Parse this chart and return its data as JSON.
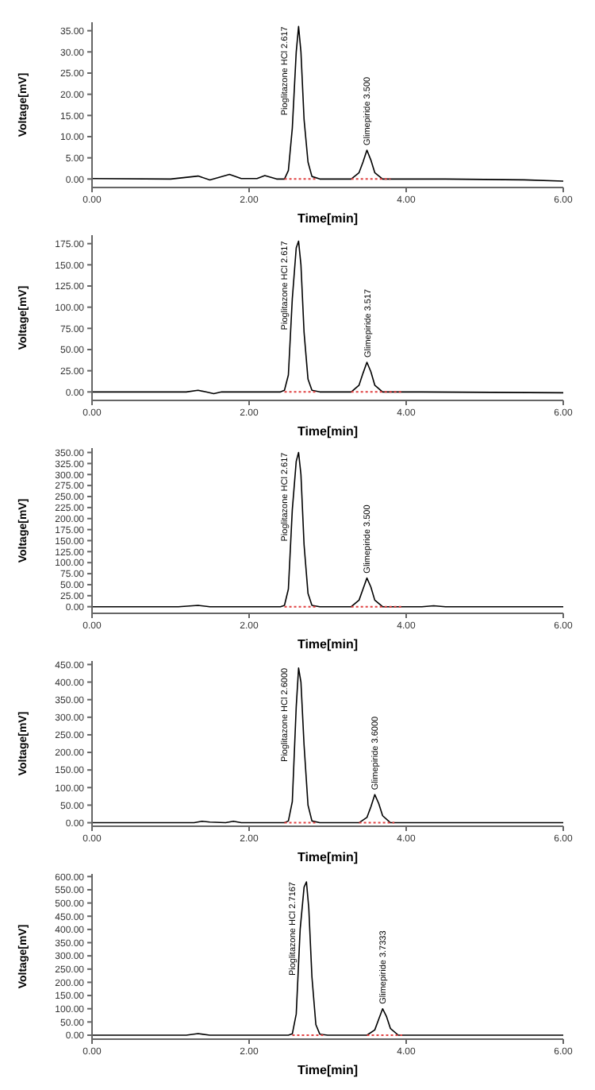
{
  "chart_data": [
    {
      "type": "line",
      "xlabel": "Time[min]",
      "ylabel": "Voltage[mV]",
      "xlim": [
        0,
        6
      ],
      "xticks": [
        {
          "value": 0,
          "label": "0.00"
        },
        {
          "value": 2,
          "label": "2.00"
        },
        {
          "value": 4,
          "label": "4.00"
        },
        {
          "value": 6,
          "label": "6.00"
        }
      ],
      "ylim": [
        -2,
        37
      ],
      "yticks": [
        {
          "value": 0,
          "label": "0.00"
        },
        {
          "value": 5,
          "label": "5.00"
        },
        {
          "value": 10,
          "label": "10.00"
        },
        {
          "value": 15,
          "label": "15.00"
        },
        {
          "value": 20,
          "label": "20.00"
        },
        {
          "value": 25,
          "label": "25.00"
        },
        {
          "value": 30,
          "label": "30.00"
        },
        {
          "value": 35,
          "label": "35.00"
        }
      ],
      "grid": false,
      "legend": false,
      "marker": "none",
      "series": [
        {
          "color": "#000000",
          "line_style": "solid",
          "x": [
            0,
            1,
            1.35,
            1.5,
            1.6,
            1.75,
            1.9,
            2.1,
            2.2,
            2.35,
            2.45,
            2.5,
            2.55,
            2.6,
            2.63,
            2.66,
            2.7,
            2.75,
            2.8,
            2.9,
            3.3,
            3.4,
            3.45,
            3.5,
            3.55,
            3.6,
            3.7,
            4.5,
            5.5,
            6
          ],
          "values": [
            0.1,
            0,
            0.7,
            -0.2,
            0.3,
            1.1,
            0.1,
            0.1,
            0.8,
            0,
            0,
            2,
            12,
            30,
            36,
            30,
            14,
            4,
            0.6,
            0,
            0,
            1.5,
            4,
            6.8,
            4.5,
            1.5,
            0,
            0,
            -0.2,
            -0.5
          ]
        },
        {
          "color": "#e04040",
          "line_style": "dotted",
          "x": [
            2.45,
            2.85
          ],
          "values": [
            0,
            0
          ]
        },
        {
          "color": "#e04040",
          "line_style": "dotted",
          "x": [
            3.3,
            3.8
          ],
          "values": [
            0,
            0
          ]
        }
      ],
      "annotations": [
        {
          "text": "Pioglitazone HCl 2.617",
          "x": 2.63,
          "y": 36
        },
        {
          "text": "Glimepiride 3.500",
          "x": 3.5,
          "y": 6.8
        }
      ]
    },
    {
      "type": "line",
      "xlabel": "Time[min]",
      "ylabel": "Voltage[mV]",
      "xlim": [
        0,
        6
      ],
      "xticks": [
        {
          "value": 0,
          "label": "0.00"
        },
        {
          "value": 2,
          "label": "2.00"
        },
        {
          "value": 4,
          "label": "4.00"
        },
        {
          "value": 6,
          "label": "6.00"
        }
      ],
      "ylim": [
        -10,
        185
      ],
      "yticks": [
        {
          "value": 0,
          "label": "0.00"
        },
        {
          "value": 25,
          "label": "25.00"
        },
        {
          "value": 50,
          "label": "50.00"
        },
        {
          "value": 75,
          "label": "75.00"
        },
        {
          "value": 100,
          "label": "100.00"
        },
        {
          "value": 125,
          "label": "125.00"
        },
        {
          "value": 150,
          "label": "150.00"
        },
        {
          "value": 175,
          "label": "175.00"
        }
      ],
      "grid": false,
      "legend": false,
      "marker": "none",
      "series": [
        {
          "color": "#000000",
          "line_style": "solid",
          "x": [
            0,
            1.2,
            1.35,
            1.45,
            1.55,
            1.65,
            2.4,
            2.45,
            2.5,
            2.55,
            2.6,
            2.63,
            2.66,
            2.7,
            2.75,
            2.8,
            2.9,
            3.3,
            3.4,
            3.45,
            3.5,
            3.55,
            3.6,
            3.7,
            4.1,
            4.2,
            6
          ],
          "values": [
            0,
            0,
            2,
            0,
            -2,
            0,
            0,
            2,
            20,
            110,
            170,
            178,
            150,
            70,
            15,
            2,
            0,
            0,
            8,
            22,
            35,
            24,
            8,
            0,
            0,
            0,
            -1
          ]
        },
        {
          "color": "#e04040",
          "line_style": "dotted",
          "x": [
            2.45,
            2.85
          ],
          "values": [
            0,
            0
          ]
        },
        {
          "color": "#e04040",
          "line_style": "dotted",
          "x": [
            3.3,
            3.95
          ],
          "values": [
            0,
            0
          ]
        }
      ],
      "annotations": [
        {
          "text": "Pioglitazone HCl 2.617",
          "x": 2.63,
          "y": 178
        },
        {
          "text": "Glimepiride 3.517",
          "x": 3.5,
          "y": 35
        }
      ]
    },
    {
      "type": "line",
      "xlabel": "Time[min]",
      "ylabel": "Voltage[mV]",
      "xlim": [
        0,
        6
      ],
      "xticks": [
        {
          "value": 0,
          "label": "0.00"
        },
        {
          "value": 2,
          "label": "2.00"
        },
        {
          "value": 4,
          "label": "4.00"
        },
        {
          "value": 6,
          "label": "6.00"
        }
      ],
      "ylim": [
        -15,
        360
      ],
      "yticks": [
        {
          "value": 0,
          "label": "0.00"
        },
        {
          "value": 25,
          "label": "25.00"
        },
        {
          "value": 50,
          "label": "50.00"
        },
        {
          "value": 75,
          "label": "75.00"
        },
        {
          "value": 100,
          "label": "100.00"
        },
        {
          "value": 125,
          "label": "125.00"
        },
        {
          "value": 150,
          "label": "150.00"
        },
        {
          "value": 175,
          "label": "175.00"
        },
        {
          "value": 200,
          "label": "200.00"
        },
        {
          "value": 225,
          "label": "225.00"
        },
        {
          "value": 250,
          "label": "250.00"
        },
        {
          "value": 275,
          "label": "275.00"
        },
        {
          "value": 300,
          "label": "300.00"
        },
        {
          "value": 325,
          "label": "325.00"
        },
        {
          "value": 350,
          "label": "350.00"
        }
      ],
      "grid": false,
      "legend": false,
      "marker": "none",
      "series": [
        {
          "color": "#000000",
          "line_style": "solid",
          "x": [
            0,
            1.1,
            1.35,
            1.5,
            2.4,
            2.45,
            2.5,
            2.55,
            2.6,
            2.63,
            2.66,
            2.7,
            2.75,
            2.8,
            2.9,
            3.3,
            3.4,
            3.45,
            3.5,
            3.55,
            3.6,
            3.7,
            4.2,
            4.35,
            4.5,
            6
          ],
          "values": [
            0,
            0,
            3,
            0,
            0,
            3,
            40,
            220,
            330,
            350,
            300,
            140,
            30,
            3,
            0,
            0,
            15,
            40,
            65,
            45,
            15,
            0,
            0,
            2,
            0,
            0
          ]
        },
        {
          "color": "#e04040",
          "line_style": "dotted",
          "x": [
            2.45,
            2.85
          ],
          "values": [
            0,
            0
          ]
        },
        {
          "color": "#e04040",
          "line_style": "dotted",
          "x": [
            3.3,
            3.95
          ],
          "values": [
            0,
            0
          ]
        }
      ],
      "annotations": [
        {
          "text": "Pioglitazone HCl 2.617",
          "x": 2.63,
          "y": 350
        },
        {
          "text": "Glimepiride 3.500",
          "x": 3.5,
          "y": 65
        }
      ]
    },
    {
      "type": "line",
      "xlabel": "Time[min]",
      "ylabel": "Voltage[mV]",
      "xlim": [
        0,
        6
      ],
      "xticks": [
        {
          "value": 0,
          "label": "0.00"
        },
        {
          "value": 2,
          "label": "2.00"
        },
        {
          "value": 4,
          "label": "4.00"
        },
        {
          "value": 6,
          "label": "6.00"
        }
      ],
      "ylim": [
        -10,
        460
      ],
      "yticks": [
        {
          "value": 0,
          "label": "0.00"
        },
        {
          "value": 50,
          "label": "50.00"
        },
        {
          "value": 100,
          "label": "100.00"
        },
        {
          "value": 150,
          "label": "150.00"
        },
        {
          "value": 200,
          "label": "200.00"
        },
        {
          "value": 250,
          "label": "250.00"
        },
        {
          "value": 300,
          "label": "300.00"
        },
        {
          "value": 350,
          "label": "350.00"
        },
        {
          "value": 400,
          "label": "400.00"
        },
        {
          "value": 450,
          "label": "450.00"
        }
      ],
      "grid": false,
      "legend": false,
      "marker": "none",
      "series": [
        {
          "color": "#000000",
          "line_style": "solid",
          "x": [
            0,
            1.3,
            1.4,
            1.5,
            1.7,
            1.8,
            1.9,
            2.45,
            2.5,
            2.55,
            2.6,
            2.63,
            2.66,
            2.7,
            2.75,
            2.8,
            2.9,
            3.4,
            3.5,
            3.55,
            3.6,
            3.65,
            3.7,
            3.8,
            6
          ],
          "values": [
            0,
            0,
            4,
            2,
            0,
            4,
            0,
            0,
            5,
            60,
            330,
            440,
            400,
            220,
            50,
            5,
            0,
            0,
            15,
            45,
            80,
            55,
            20,
            0,
            0
          ]
        },
        {
          "color": "#e04040",
          "line_style": "dotted",
          "x": [
            2.45,
            2.85
          ],
          "values": [
            0,
            0
          ]
        },
        {
          "color": "#e04040",
          "line_style": "dotted",
          "x": [
            3.4,
            3.85
          ],
          "values": [
            0,
            0
          ]
        }
      ],
      "annotations": [
        {
          "text": "Pioglitazone HCl 2.6000",
          "x": 2.63,
          "y": 440
        },
        {
          "text": "Glimepiride 3.6000",
          "x": 3.6,
          "y": 80
        }
      ]
    },
    {
      "type": "line",
      "xlabel": "Time[min]",
      "ylabel": "Voltage[mV]",
      "xlim": [
        0,
        6
      ],
      "xticks": [
        {
          "value": 0,
          "label": "0.00"
        },
        {
          "value": 2,
          "label": "2.00"
        },
        {
          "value": 4,
          "label": "4.00"
        },
        {
          "value": 6,
          "label": "6.00"
        }
      ],
      "ylim": [
        -15,
        610
      ],
      "yticks": [
        {
          "value": 0,
          "label": "0.00"
        },
        {
          "value": 50,
          "label": "50.00"
        },
        {
          "value": 100,
          "label": "100.00"
        },
        {
          "value": 150,
          "label": "150.00"
        },
        {
          "value": 200,
          "label": "200.00"
        },
        {
          "value": 250,
          "label": "250.00"
        },
        {
          "value": 300,
          "label": "300.00"
        },
        {
          "value": 350,
          "label": "350.00"
        },
        {
          "value": 400,
          "label": "400.00"
        },
        {
          "value": 450,
          "label": "450.00"
        },
        {
          "value": 500,
          "label": "500.00"
        },
        {
          "value": 550,
          "label": "550.00"
        },
        {
          "value": 600,
          "label": "600.00"
        }
      ],
      "grid": false,
      "legend": false,
      "marker": "none",
      "series": [
        {
          "color": "#000000",
          "line_style": "solid",
          "x": [
            0,
            1.2,
            1.35,
            1.5,
            2.5,
            2.55,
            2.6,
            2.65,
            2.7,
            2.73,
            2.76,
            2.8,
            2.85,
            2.9,
            3.0,
            3.5,
            3.6,
            3.65,
            3.7,
            3.75,
            3.8,
            3.9,
            6
          ],
          "values": [
            0,
            0,
            6,
            0,
            0,
            5,
            80,
            400,
            560,
            580,
            480,
            220,
            40,
            4,
            0,
            0,
            20,
            60,
            100,
            70,
            25,
            0,
            0
          ]
        },
        {
          "color": "#e04040",
          "line_style": "dotted",
          "x": [
            2.55,
            2.95
          ],
          "values": [
            0,
            0
          ]
        },
        {
          "color": "#e04040",
          "line_style": "dotted",
          "x": [
            3.5,
            3.95
          ],
          "values": [
            0,
            0
          ]
        }
      ],
      "annotations": [
        {
          "text": "Pioglitazone HCl 2.7167",
          "x": 2.73,
          "y": 580
        },
        {
          "text": "Glimepiride 3.7333",
          "x": 3.7,
          "y": 100
        }
      ]
    }
  ]
}
